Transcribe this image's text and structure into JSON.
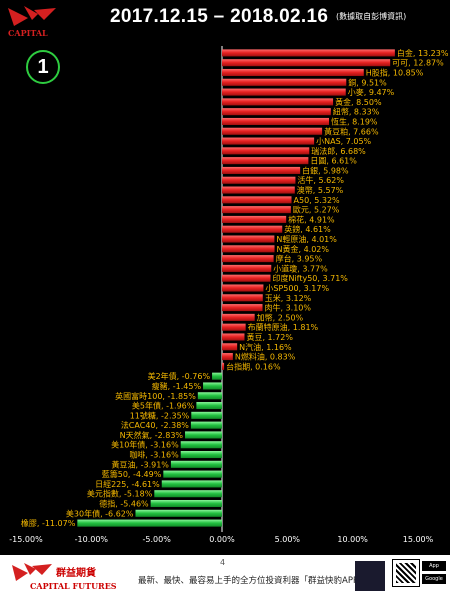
{
  "header": {
    "title": "2017.12.15 – 2018.02.16",
    "source_note": "(數據取自彭博資訊)",
    "badge": "1",
    "logo_text": "CAPITAL"
  },
  "footer": {
    "company_cn": "群益期貨",
    "company_en": "CAPITAL FUTURES",
    "page": "4",
    "slogan": "最新、最快、最容易上手的全方位投資利器「群益快豹APP」",
    "app_store": "App Store",
    "google_play": "Google Play"
  },
  "colors": {
    "positive": "#e52020",
    "negative": "#22c040",
    "label": "#f5b800",
    "axis": "#ffffff"
  },
  "chart_data": {
    "type": "bar",
    "orientation": "horizontal",
    "xlim": [
      -15,
      15
    ],
    "xticks": [
      "-15.00%",
      "-10.00%",
      "-5.00%",
      "0.00%",
      "5.00%",
      "10.00%",
      "15.00%"
    ],
    "xtick_values": [
      -15,
      -10,
      -5,
      0,
      5,
      10,
      15
    ],
    "items": [
      {
        "label": "白金, 13.23%",
        "value": 13.23
      },
      {
        "label": "可可, 12.87%",
        "value": 12.87
      },
      {
        "label": "H股指, 10.85%",
        "value": 10.85
      },
      {
        "label": "銅, 9.51%",
        "value": 9.51
      },
      {
        "label": "小麥, 9.47%",
        "value": 9.47
      },
      {
        "label": "黃金, 8.50%",
        "value": 8.5
      },
      {
        "label": "紐幣, 8.33%",
        "value": 8.33
      },
      {
        "label": "恆生, 8.19%",
        "value": 8.19
      },
      {
        "label": "黃豆粕, 7.66%",
        "value": 7.66
      },
      {
        "label": "小NAS, 7.05%",
        "value": 7.05
      },
      {
        "label": "瑞法郎, 6.68%",
        "value": 6.68
      },
      {
        "label": "日圓, 6.61%",
        "value": 6.61
      },
      {
        "label": "白銀, 5.98%",
        "value": 5.98
      },
      {
        "label": "活牛, 5.62%",
        "value": 5.62
      },
      {
        "label": "澳幣, 5.57%",
        "value": 5.57
      },
      {
        "label": "A50, 5.32%",
        "value": 5.32
      },
      {
        "label": "歐元, 5.27%",
        "value": 5.27
      },
      {
        "label": "棉花, 4.91%",
        "value": 4.91
      },
      {
        "label": "英鎊, 4.61%",
        "value": 4.61
      },
      {
        "label": "N輕原油, 4.01%",
        "value": 4.01
      },
      {
        "label": "N黃金, 4.02%",
        "value": 4.02
      },
      {
        "label": "摩台, 3.95%",
        "value": 3.95
      },
      {
        "label": "小道瓊, 3.77%",
        "value": 3.77
      },
      {
        "label": "印度Nifty50, 3.71%",
        "value": 3.71
      },
      {
        "label": "小SP500, 3.17%",
        "value": 3.17
      },
      {
        "label": "玉米, 3.12%",
        "value": 3.12
      },
      {
        "label": "肉牛, 3.10%",
        "value": 3.1
      },
      {
        "label": "加幣, 2.50%",
        "value": 2.5
      },
      {
        "label": "布蘭特原油, 1.81%",
        "value": 1.81
      },
      {
        "label": "黃豆, 1.72%",
        "value": 1.72
      },
      {
        "label": "N汽油, 1.16%",
        "value": 1.16
      },
      {
        "label": "N燃料油, 0.83%",
        "value": 0.83
      },
      {
        "label": "台指期, 0.16%",
        "value": 0.16
      },
      {
        "label": "美2年債, -0.76%",
        "value": -0.76
      },
      {
        "label": "瘦豬, -1.45%",
        "value": -1.45
      },
      {
        "label": "英國富時100, -1.85%",
        "value": -1.85
      },
      {
        "label": "美5年債, -1.96%",
        "value": -1.96
      },
      {
        "label": "11號糖, -2.35%",
        "value": -2.35
      },
      {
        "label": "法CAC40, -2.38%",
        "value": -2.38
      },
      {
        "label": "N天然氣, -2.83%",
        "value": -2.83
      },
      {
        "label": "美10年債, -3.16%",
        "value": -3.16
      },
      {
        "label": "咖啡, -3.16%",
        "value": -3.16
      },
      {
        "label": "黃豆油, -3.91%",
        "value": -3.91
      },
      {
        "label": "藍籌50, -4.49%",
        "value": -4.49
      },
      {
        "label": "日經225, -4.61%",
        "value": -4.61
      },
      {
        "label": "美元指數, -5.18%",
        "value": -5.18
      },
      {
        "label": "德指, -5.46%",
        "value": -5.46
      },
      {
        "label": "美30年債, -6.62%",
        "value": -6.62
      },
      {
        "label": "橡膠, -11.07%",
        "value": -11.07
      }
    ]
  }
}
